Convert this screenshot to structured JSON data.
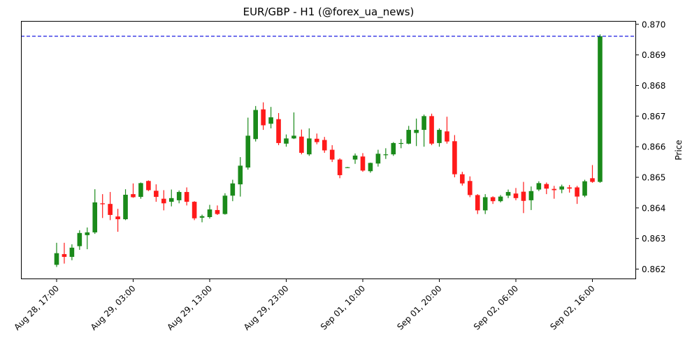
{
  "chart_data": {
    "type": "candlestick",
    "title": "EUR/GBP - H1 (@forex_ua_news)",
    "xlabel": "",
    "ylabel": "Price",
    "ylim": [
      0.86167,
      0.87011
    ],
    "y_ticks": [
      0.862,
      0.863,
      0.864,
      0.865,
      0.866,
      0.867,
      0.868,
      0.869,
      0.87
    ],
    "y_tick_labels": [
      "0.862",
      "0.863",
      "0.864",
      "0.865",
      "0.866",
      "0.867",
      "0.868",
      "0.869",
      "0.870"
    ],
    "x_ticks": [
      0,
      10,
      20,
      30,
      40,
      50,
      60,
      70
    ],
    "x_tick_labels": [
      "Aug 28, 17:00",
      "Aug 29, 03:00",
      "Aug 29, 13:00",
      "Aug 29, 23:00",
      "Sep 01, 10:00",
      "Sep 01, 20:00",
      "Sep 02, 06:00",
      "Sep 02, 16:00"
    ],
    "grid": false,
    "legend": null,
    "up_color": "#1a8a1a",
    "down_color": "#ff1a1a",
    "hline": {
      "value": 0.86961,
      "color": "#0000dd",
      "style": "dashed"
    },
    "candles": [
      {
        "o": 0.86214,
        "h": 0.86286,
        "l": 0.86207,
        "c": 0.86252
      },
      {
        "o": 0.86249,
        "h": 0.86286,
        "l": 0.86218,
        "c": 0.8624
      },
      {
        "o": 0.8624,
        "h": 0.86281,
        "l": 0.86229,
        "c": 0.8627
      },
      {
        "o": 0.86275,
        "h": 0.86327,
        "l": 0.86263,
        "c": 0.86318
      },
      {
        "o": 0.86311,
        "h": 0.86336,
        "l": 0.86265,
        "c": 0.8632
      },
      {
        "o": 0.8632,
        "h": 0.86461,
        "l": 0.86315,
        "c": 0.86418
      },
      {
        "o": 0.86415,
        "h": 0.86445,
        "l": 0.86367,
        "c": 0.86412
      },
      {
        "o": 0.86413,
        "h": 0.86452,
        "l": 0.8636,
        "c": 0.86377
      },
      {
        "o": 0.86372,
        "h": 0.86397,
        "l": 0.86322,
        "c": 0.86363
      },
      {
        "o": 0.86363,
        "h": 0.86461,
        "l": 0.8636,
        "c": 0.86443
      },
      {
        "o": 0.86445,
        "h": 0.8648,
        "l": 0.86433,
        "c": 0.86435
      },
      {
        "o": 0.86436,
        "h": 0.86483,
        "l": 0.8643,
        "c": 0.86481
      },
      {
        "o": 0.86488,
        "h": 0.8649,
        "l": 0.86455,
        "c": 0.86458
      },
      {
        "o": 0.86456,
        "h": 0.86477,
        "l": 0.8642,
        "c": 0.86436
      },
      {
        "o": 0.8643,
        "h": 0.86458,
        "l": 0.86392,
        "c": 0.86415
      },
      {
        "o": 0.8642,
        "h": 0.8646,
        "l": 0.86405,
        "c": 0.86432
      },
      {
        "o": 0.86425,
        "h": 0.86457,
        "l": 0.86415,
        "c": 0.86452
      },
      {
        "o": 0.86452,
        "h": 0.86467,
        "l": 0.86408,
        "c": 0.8642
      },
      {
        "o": 0.8642,
        "h": 0.86422,
        "l": 0.8636,
        "c": 0.86366
      },
      {
        "o": 0.86368,
        "h": 0.86378,
        "l": 0.86353,
        "c": 0.86373
      },
      {
        "o": 0.8637,
        "h": 0.8641,
        "l": 0.86365,
        "c": 0.86395
      },
      {
        "o": 0.86393,
        "h": 0.86408,
        "l": 0.86377,
        "c": 0.8638
      },
      {
        "o": 0.8638,
        "h": 0.86448,
        "l": 0.86378,
        "c": 0.8644
      },
      {
        "o": 0.8644,
        "h": 0.86492,
        "l": 0.86422,
        "c": 0.8648
      },
      {
        "o": 0.86477,
        "h": 0.86566,
        "l": 0.86437,
        "c": 0.86538
      },
      {
        "o": 0.86532,
        "h": 0.86695,
        "l": 0.86525,
        "c": 0.86636
      },
      {
        "o": 0.86625,
        "h": 0.86733,
        "l": 0.86617,
        "c": 0.8672
      },
      {
        "o": 0.86722,
        "h": 0.86745,
        "l": 0.86655,
        "c": 0.8667
      },
      {
        "o": 0.86675,
        "h": 0.8673,
        "l": 0.8666,
        "c": 0.86696
      },
      {
        "o": 0.8669,
        "h": 0.8671,
        "l": 0.86605,
        "c": 0.86612
      },
      {
        "o": 0.8661,
        "h": 0.8664,
        "l": 0.866,
        "c": 0.86627
      },
      {
        "o": 0.86627,
        "h": 0.86712,
        "l": 0.86625,
        "c": 0.86636
      },
      {
        "o": 0.86633,
        "h": 0.86656,
        "l": 0.86575,
        "c": 0.8658
      },
      {
        "o": 0.86575,
        "h": 0.8666,
        "l": 0.8657,
        "c": 0.86627
      },
      {
        "o": 0.86626,
        "h": 0.86643,
        "l": 0.86608,
        "c": 0.86615
      },
      {
        "o": 0.86622,
        "h": 0.86632,
        "l": 0.8658,
        "c": 0.86588
      },
      {
        "o": 0.8659,
        "h": 0.86605,
        "l": 0.8655,
        "c": 0.86558
      },
      {
        "o": 0.86558,
        "h": 0.86562,
        "l": 0.86497,
        "c": 0.86507
      },
      {
        "o": 0.86533,
        "h": 0.86534,
        "l": 0.86532,
        "c": 0.86533
      },
      {
        "o": 0.86558,
        "h": 0.86578,
        "l": 0.86544,
        "c": 0.86571
      },
      {
        "o": 0.86568,
        "h": 0.86579,
        "l": 0.86518,
        "c": 0.86522
      },
      {
        "o": 0.8652,
        "h": 0.86548,
        "l": 0.86515,
        "c": 0.86547
      },
      {
        "o": 0.86545,
        "h": 0.8659,
        "l": 0.86535,
        "c": 0.86577
      },
      {
        "o": 0.86575,
        "h": 0.86595,
        "l": 0.8656,
        "c": 0.86575
      },
      {
        "o": 0.86575,
        "h": 0.86615,
        "l": 0.8657,
        "c": 0.86612
      },
      {
        "o": 0.86612,
        "h": 0.86625,
        "l": 0.86595,
        "c": 0.86612
      },
      {
        "o": 0.8661,
        "h": 0.86668,
        "l": 0.86608,
        "c": 0.86655
      },
      {
        "o": 0.86645,
        "h": 0.86692,
        "l": 0.86602,
        "c": 0.86655
      },
      {
        "o": 0.86655,
        "h": 0.86705,
        "l": 0.866,
        "c": 0.867
      },
      {
        "o": 0.867,
        "h": 0.86708,
        "l": 0.86605,
        "c": 0.8661
      },
      {
        "o": 0.86612,
        "h": 0.8666,
        "l": 0.866,
        "c": 0.86655
      },
      {
        "o": 0.8665,
        "h": 0.86698,
        "l": 0.8661,
        "c": 0.86617
      },
      {
        "o": 0.86618,
        "h": 0.86638,
        "l": 0.865,
        "c": 0.8651
      },
      {
        "o": 0.8651,
        "h": 0.86518,
        "l": 0.86473,
        "c": 0.8648
      },
      {
        "o": 0.86488,
        "h": 0.86503,
        "l": 0.86435,
        "c": 0.86442
      },
      {
        "o": 0.86442,
        "h": 0.86445,
        "l": 0.8638,
        "c": 0.86392
      },
      {
        "o": 0.86392,
        "h": 0.86445,
        "l": 0.8638,
        "c": 0.86435
      },
      {
        "o": 0.86435,
        "h": 0.86438,
        "l": 0.86413,
        "c": 0.86422
      },
      {
        "o": 0.86422,
        "h": 0.86442,
        "l": 0.86418,
        "c": 0.86437
      },
      {
        "o": 0.8644,
        "h": 0.8646,
        "l": 0.86432,
        "c": 0.86452
      },
      {
        "o": 0.86447,
        "h": 0.86465,
        "l": 0.86425,
        "c": 0.86432
      },
      {
        "o": 0.86453,
        "h": 0.86485,
        "l": 0.86383,
        "c": 0.86423
      },
      {
        "o": 0.86425,
        "h": 0.8647,
        "l": 0.86393,
        "c": 0.86455
      },
      {
        "o": 0.8646,
        "h": 0.86487,
        "l": 0.86455,
        "c": 0.86481
      },
      {
        "o": 0.86478,
        "h": 0.86483,
        "l": 0.86445,
        "c": 0.86463
      },
      {
        "o": 0.86462,
        "h": 0.86472,
        "l": 0.8643,
        "c": 0.86458
      },
      {
        "o": 0.8646,
        "h": 0.86476,
        "l": 0.86448,
        "c": 0.8647
      },
      {
        "o": 0.86467,
        "h": 0.86475,
        "l": 0.8645,
        "c": 0.86463
      },
      {
        "o": 0.86467,
        "h": 0.86472,
        "l": 0.86413,
        "c": 0.86437
      },
      {
        "o": 0.8644,
        "h": 0.86492,
        "l": 0.86435,
        "c": 0.86487
      },
      {
        "o": 0.86497,
        "h": 0.8654,
        "l": 0.86482,
        "c": 0.86485
      },
      {
        "o": 0.86485,
        "h": 0.86967,
        "l": 0.86482,
        "c": 0.86961
      }
    ]
  }
}
